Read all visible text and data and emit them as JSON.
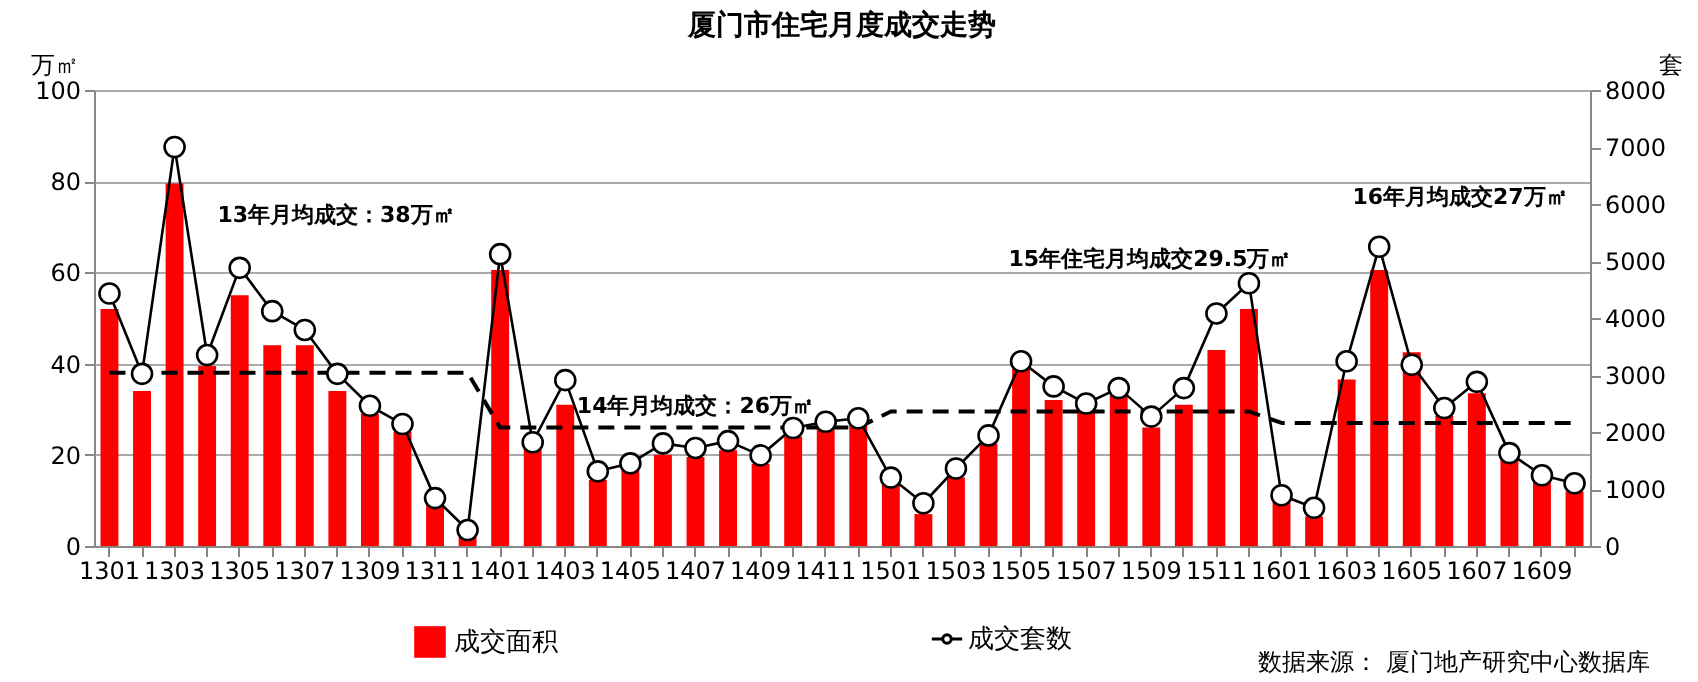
{
  "chart_data": {
    "type": "bar",
    "title": "厦门市住宅月度成交走势",
    "ylabel": "万㎡",
    "y2label": "套",
    "categories": [
      "1301",
      null,
      "1303",
      null,
      "1305",
      null,
      "1307",
      null,
      "1309",
      null,
      "1311",
      null,
      "1401",
      null,
      "1403",
      null,
      "1405",
      null,
      "1407",
      null,
      "1409",
      null,
      "1411",
      null,
      "1501",
      null,
      "1503",
      null,
      "1505",
      null,
      "1507",
      null,
      "1509",
      null,
      "1511",
      null,
      "1601",
      null,
      "1603",
      null,
      "1605",
      null,
      "1607",
      null,
      "1609",
      null
    ],
    "series": [
      {
        "name": "成交面积",
        "color": "#ff0000",
        "values": [
          52,
          34,
          79.5,
          39.5,
          55,
          44,
          44,
          34,
          29,
          25,
          9,
          2,
          60.5,
          22,
          31,
          14.5,
          17,
          20,
          19.5,
          21,
          18,
          24,
          25.5,
          26.5,
          13.5,
          7,
          15,
          22.5,
          39,
          32,
          29.5,
          33,
          26,
          31,
          43,
          52,
          10,
          6.5,
          36.5,
          60.5,
          42.5,
          28.5,
          33.5,
          19,
          14.5,
          12
        ]
      },
      {
        "name": "成交套数",
        "type": "line",
        "axis": "y2",
        "marker": "circle",
        "color": "#000000",
        "values": [
          4430,
          3020,
          7000,
          3350,
          4880,
          4120,
          3790,
          3020,
          2460,
          2140,
          840,
          280,
          5120,
          1820,
          2910,
          1310,
          1450,
          1800,
          1720,
          1840,
          1590,
          2070,
          2180,
          2240,
          1200,
          750,
          1360,
          1940,
          3240,
          2800,
          2500,
          2770,
          2270,
          2770,
          4080,
          4610,
          890,
          670,
          3240,
          5250,
          3180,
          2420,
          2880,
          1630,
          1240,
          1100
        ]
      },
      {
        "type": "line",
        "line_style": "dashed",
        "marker": "none",
        "color": "#000000",
        "values": [
          38,
          38,
          38,
          38,
          38,
          38,
          38,
          38,
          38,
          38,
          38,
          38,
          26,
          26,
          26,
          26,
          26,
          26,
          26,
          26,
          26,
          26,
          26,
          26,
          29.5,
          29.5,
          29.5,
          29.5,
          29.5,
          29.5,
          29.5,
          29.5,
          29.5,
          29.5,
          29.5,
          29.5,
          27,
          27,
          27,
          27,
          27,
          27,
          27,
          27,
          27,
          27
        ]
      }
    ],
    "ylim": [
      0,
      100
    ],
    "yticks": [
      0,
      20,
      40,
      60,
      80,
      100
    ],
    "y2lim": [
      0,
      8000
    ],
    "y2ticks": [
      0,
      1000,
      2000,
      3000,
      4000,
      5000,
      6000,
      7000,
      8000
    ],
    "grid": "y",
    "legend": "bottom",
    "annotations": [
      "13年月均成交：38万㎡",
      {
        "text": "14年月均成交：26万㎡",
        "x": "1407",
        "y": 26
      },
      "15年住宅月均成交29.5万㎡",
      "16年月均成交27万㎡",
      "数据来源：  厦门地产研究中心数据库"
    ]
  }
}
